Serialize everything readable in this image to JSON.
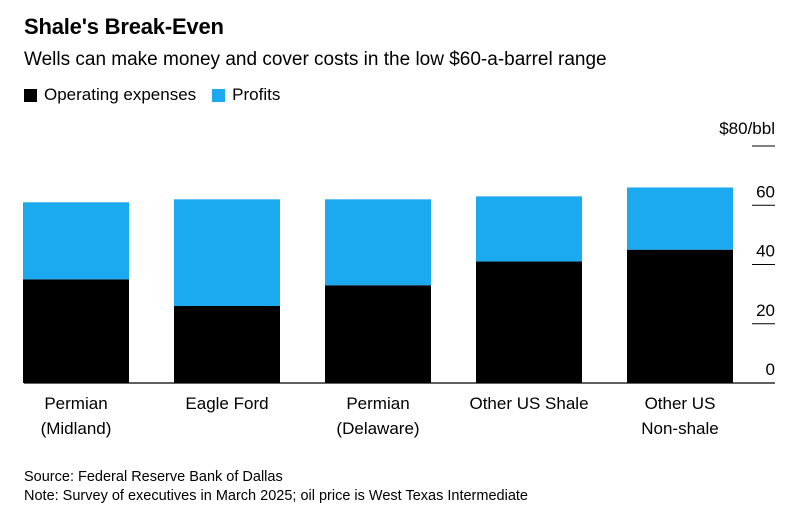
{
  "title": "Shale's Break-Even",
  "subtitle": "Wells can make money and cover costs in the low $60-a-barrel range",
  "source": "Source: Federal Reserve Bank of Dallas",
  "note": "Note: Survey of executives in March 2025; oil price is West Texas Intermediate",
  "colors": {
    "operating": "#000000",
    "profits": "#1ba9ef",
    "grid": "#000000"
  },
  "chart_data": {
    "type": "bar",
    "stacked": true,
    "categories": [
      [
        "Permian",
        "(Midland)"
      ],
      [
        "Eagle Ford"
      ],
      [
        "Permian",
        "(Delaware)"
      ],
      [
        "Other US Shale"
      ],
      [
        "Other US",
        "Non-shale"
      ]
    ],
    "series": [
      {
        "name": "Operating expenses",
        "values": [
          35,
          26,
          33,
          41,
          45
        ]
      },
      {
        "name": "Profits",
        "values": [
          26,
          36,
          29,
          22,
          21
        ]
      }
    ],
    "y_unit_label": "$80/bbl",
    "yticks": [
      0,
      20,
      40,
      60
    ],
    "ylim": [
      0,
      80
    ],
    "grid": true,
    "legend_position": "top-left"
  }
}
